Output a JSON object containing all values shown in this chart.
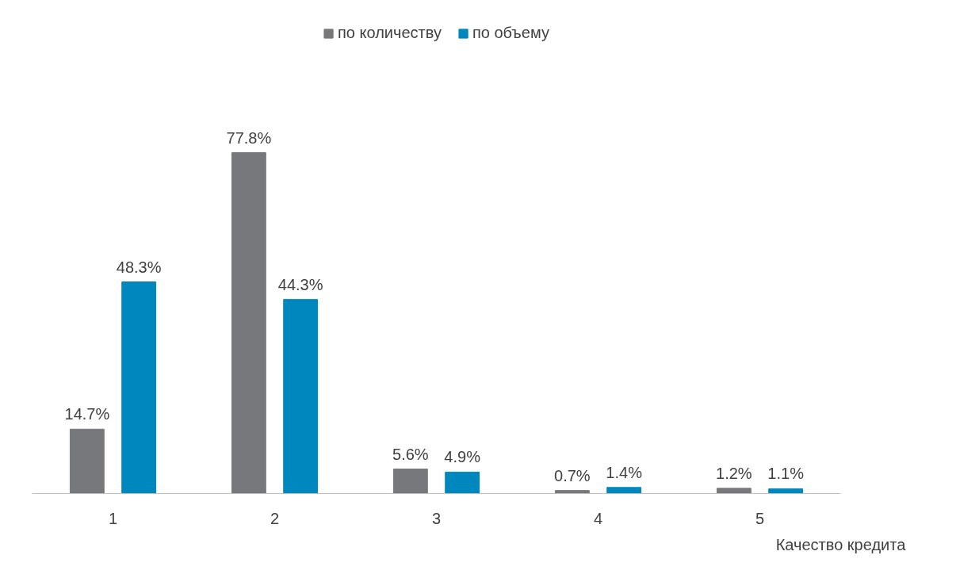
{
  "chart_data": {
    "type": "bar",
    "categories": [
      "1",
      "2",
      "3",
      "4",
      "5"
    ],
    "xlabel": "Качество кредита",
    "legend": "top",
    "grid": false,
    "series": [
      {
        "name": "по количеству",
        "color": "#77787b",
        "values": [
          14.7,
          77.8,
          5.6,
          0.7,
          1.2
        ],
        "value_labels": [
          "14.7%",
          "77.8%",
          "5.6%",
          "0.7%",
          "1.2%"
        ]
      },
      {
        "name": "по объему",
        "color": "#0087bd",
        "values": [
          48.3,
          44.3,
          4.9,
          1.4,
          1.1
        ],
        "value_labels": [
          "48.3%",
          "44.3%",
          "4.9%",
          "1.4%",
          "1.1%"
        ]
      }
    ]
  }
}
